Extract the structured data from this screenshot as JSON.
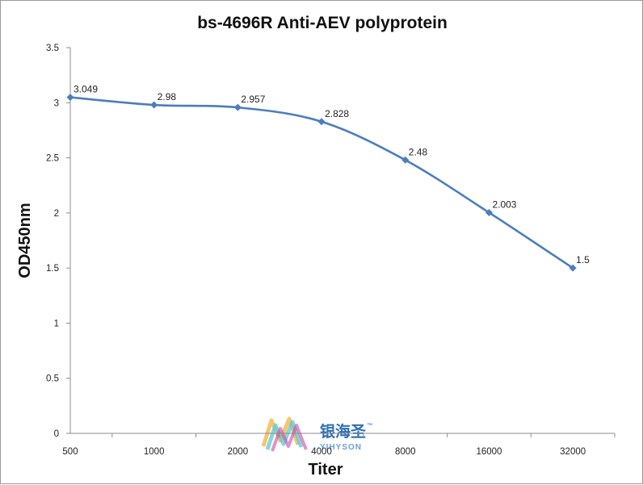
{
  "chart_data": {
    "type": "line",
    "title": "bs-4696R Anti-AEV polyprotein",
    "xlabel": "Titer",
    "ylabel": "OD450nm",
    "categories": [
      "500",
      "1000",
      "2000",
      "4000",
      "8000",
      "16000",
      "32000"
    ],
    "series": [
      {
        "values": [
          3.049,
          2.98,
          2.957,
          2.828,
          2.48,
          2.003,
          1.5
        ],
        "data_labels": [
          "3.049",
          "2.98",
          "2.957",
          "2.828",
          "2.48",
          "2.003",
          "1.5"
        ],
        "color": "#4a7ebb"
      }
    ],
    "ylim": [
      0,
      3.5
    ],
    "yticks": [
      0,
      0.5,
      1,
      1.5,
      2,
      2.5,
      3,
      3.5
    ],
    "ytick_labels": [
      "0",
      "0.5",
      "1",
      "1.5",
      "2",
      "2.5",
      "3",
      "3.5"
    ],
    "grid": false,
    "legend": "none"
  },
  "watermark": {
    "brand_cn": "银海圣",
    "brand_en": "YIHYSON",
    "trademark": "™"
  }
}
